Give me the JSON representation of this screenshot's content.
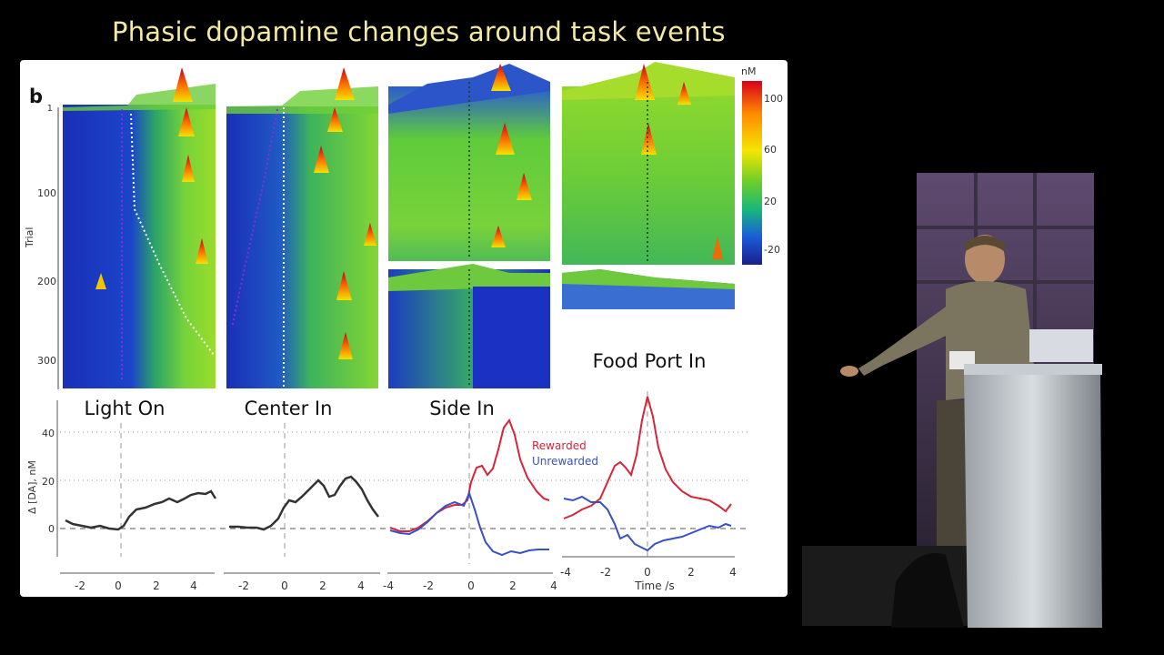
{
  "slide": {
    "title": "Phasic dopamine changes around task events",
    "panel_label": "b"
  },
  "heatmaps": {
    "y_axis_label": "Trial",
    "y_ticks": [
      "1",
      "100",
      "200",
      "300"
    ],
    "colorbar": {
      "unit": "nM",
      "ticks": [
        "100",
        "60",
        "20",
        "-20"
      ],
      "colors": [
        "#d7001c",
        "#ff8c00",
        "#f5e600",
        "#6ccd2a",
        "#17b87c",
        "#1a5cd8",
        "#1a1f8c"
      ]
    }
  },
  "line_plots": {
    "titles": [
      "Light On",
      "Center In",
      "Side In",
      "Food Port In"
    ],
    "y_axis_label": "Δ [DA], nM",
    "y_ticks": [
      "40",
      "20",
      "0"
    ],
    "x_ticks_panel1": [
      "-2",
      "0",
      "2",
      "4"
    ],
    "x_ticks_panel2": [
      "-2",
      "0",
      "2",
      "4"
    ],
    "x_ticks_panel3": [
      "-4",
      "-2",
      "0",
      "2",
      "4"
    ],
    "x_ticks_panel4": [
      "-4",
      "-2",
      "0",
      "2",
      "4"
    ],
    "x_axis_label": "Time /s",
    "legend": [
      {
        "label": "Rewarded",
        "color": "#d6243a"
      },
      {
        "label": "Unrewarded",
        "color": "#3a4fc6"
      }
    ]
  },
  "colors": {
    "slide_background": "#ffffff",
    "stage_background": "#000000",
    "title_color": "#f3e9a0",
    "trace_black": "#333333",
    "trace_red": "#d6243a",
    "trace_blue": "#3a4fc6"
  }
}
